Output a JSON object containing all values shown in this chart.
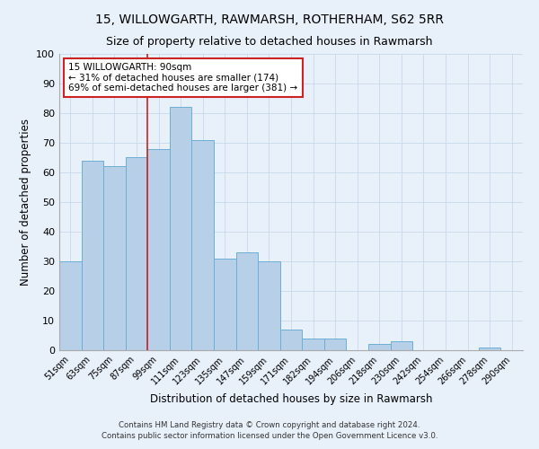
{
  "title": "15, WILLOWGARTH, RAWMARSH, ROTHERHAM, S62 5RR",
  "subtitle": "Size of property relative to detached houses in Rawmarsh",
  "xlabel": "Distribution of detached houses by size in Rawmarsh",
  "ylabel": "Number of detached properties",
  "footer_line1": "Contains HM Land Registry data © Crown copyright and database right 2024.",
  "footer_line2": "Contains public sector information licensed under the Open Government Licence v3.0.",
  "categories": [
    "51sqm",
    "63sqm",
    "75sqm",
    "87sqm",
    "99sqm",
    "111sqm",
    "123sqm",
    "135sqm",
    "147sqm",
    "159sqm",
    "171sqm",
    "182sqm",
    "194sqm",
    "206sqm",
    "218sqm",
    "230sqm",
    "242sqm",
    "254sqm",
    "266sqm",
    "278sqm",
    "290sqm"
  ],
  "values": [
    30,
    64,
    62,
    65,
    68,
    82,
    71,
    31,
    33,
    30,
    7,
    4,
    4,
    0,
    2,
    3,
    0,
    0,
    0,
    1,
    0
  ],
  "bar_color": "#b8cfe8",
  "bar_edge_color": "#6baed6",
  "background_color": "#e8f0fa",
  "grid_color": "#c8d8ee",
  "vline_color": "#cc2222",
  "annotation_text": "15 WILLOWGARTH: 90sqm\n← 31% of detached houses are smaller (174)\n69% of semi-detached houses are larger (381) →",
  "annotation_box_color": "#ffffff",
  "annotation_box_edge": "#cc2222",
  "vline_position": 3.5,
  "ylim": [
    0,
    100
  ],
  "yticks": [
    0,
    10,
    20,
    30,
    40,
    50,
    60,
    70,
    80,
    90,
    100
  ]
}
